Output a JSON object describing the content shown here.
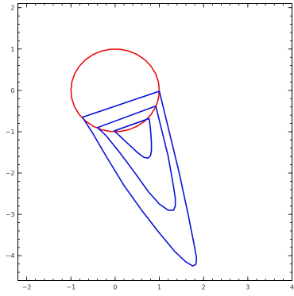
{
  "chart_data": {
    "type": "line",
    "title": "",
    "xlabel": "",
    "ylabel": "",
    "xlim": [
      -2.2,
      4
    ],
    "ylim": [
      -4.6,
      2.1
    ],
    "x_ticks": [
      -2,
      -1,
      0,
      1,
      2,
      3,
      4
    ],
    "y_ticks": [
      2,
      1,
      0,
      -1,
      -2,
      -3,
      -4
    ],
    "x_minor_step": 0.2,
    "y_minor_step": 0.2,
    "grid": false,
    "frame": "full",
    "colors": {
      "circle": "#e81010",
      "loops": "#0a12d8"
    },
    "series": [
      {
        "color": "#e81010",
        "shape": "unit circle",
        "x": [
          1,
          0.978,
          0.914,
          0.809,
          0.669,
          0.5,
          0.309,
          0.105,
          -0.105,
          -0.309,
          -0.5,
          -0.669,
          -0.809,
          -0.914,
          -0.978,
          -1,
          -0.978,
          -0.914,
          -0.809,
          -0.669,
          -0.5,
          -0.309,
          -0.105,
          0.105,
          0.309,
          0.5,
          0.669,
          0.809,
          0.914,
          0.978,
          1
        ],
        "y": [
          0,
          0.208,
          0.407,
          0.588,
          0.743,
          0.866,
          0.951,
          0.995,
          0.995,
          0.951,
          0.866,
          0.743,
          0.588,
          0.407,
          0.208,
          0,
          -0.208,
          -0.407,
          -0.588,
          -0.743,
          -0.866,
          -0.951,
          -0.995,
          -0.995,
          -0.951,
          -0.866,
          -0.743,
          -0.588,
          -0.407,
          -0.208,
          0
        ]
      },
      {
        "color": "#0a12d8",
        "shape": "outer loop",
        "x": [
          1.0,
          1.2,
          1.45,
          1.65,
          1.78,
          1.84,
          1.83,
          1.76,
          1.6,
          1.35,
          1.0,
          0.6,
          0.2,
          -0.2,
          -0.5,
          -0.74,
          1.0
        ],
        "y": [
          -0.02,
          -0.9,
          -2.0,
          -3.0,
          -3.7,
          -4.05,
          -4.2,
          -4.25,
          -4.15,
          -3.9,
          -3.45,
          -2.9,
          -2.3,
          -1.6,
          -1.05,
          -0.65,
          -0.02
        ]
      },
      {
        "color": "#0a12d8",
        "shape": "middle loop",
        "x": [
          0.92,
          1.05,
          1.2,
          1.3,
          1.36,
          1.36,
          1.32,
          1.2,
          1.0,
          0.75,
          0.45,
          0.1,
          -0.2,
          -0.4,
          0.92
        ],
        "y": [
          -0.38,
          -0.95,
          -1.6,
          -2.2,
          -2.6,
          -2.8,
          -2.9,
          -2.9,
          -2.75,
          -2.45,
          -2.0,
          -1.5,
          -1.1,
          -0.9,
          -0.38
        ]
      },
      {
        "color": "#0a12d8",
        "shape": "inner loop",
        "x": [
          0.77,
          0.8,
          0.82,
          0.82,
          0.8,
          0.74,
          0.65,
          0.5,
          0.3,
          0.12,
          -0.02,
          0.77
        ],
        "y": [
          -0.68,
          -0.95,
          -1.25,
          -1.45,
          -1.58,
          -1.64,
          -1.62,
          -1.5,
          -1.3,
          -1.12,
          -0.98,
          -0.68
        ]
      }
    ]
  }
}
